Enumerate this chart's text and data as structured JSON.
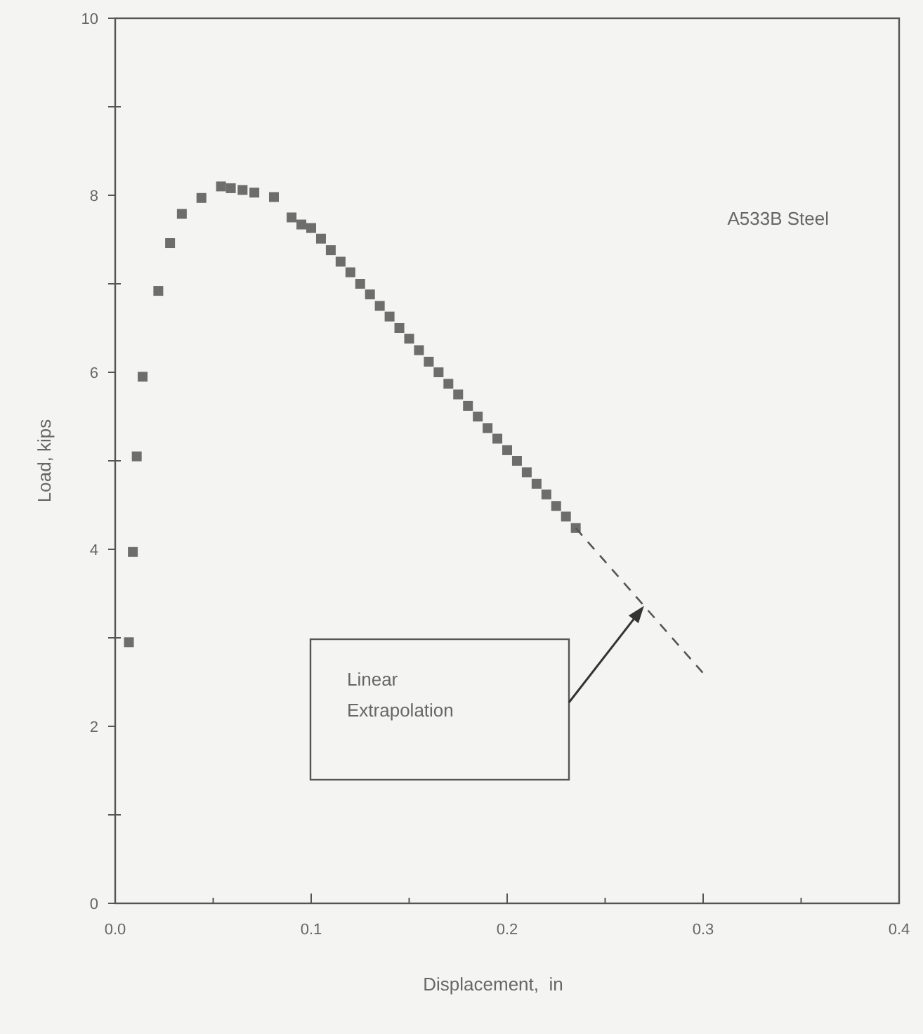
{
  "chart_data": {
    "type": "scatter",
    "xlabel": "Displacement,  in",
    "ylabel": "Load, kips",
    "annotations": [
      "A533B Steel",
      "Linear Extrapolation"
    ],
    "xlim": [
      0,
      0.4
    ],
    "ylim": [
      0,
      10
    ],
    "xticks": [
      {
        "value": 0,
        "label": "0.0"
      },
      {
        "value": 0.05,
        "label": null
      },
      0.1,
      {
        "value": 0.15,
        "label": null
      },
      0.2,
      {
        "value": 0.25,
        "label": null
      },
      0.3,
      {
        "value": 0.35,
        "label": null
      },
      0.4
    ],
    "yticks": [
      0,
      {
        "value": 1,
        "label": null
      },
      2,
      {
        "value": 3,
        "label": null
      },
      4,
      {
        "value": 5,
        "label": null
      },
      6,
      {
        "value": 7,
        "label": null
      },
      8,
      {
        "value": 9,
        "label": null
      },
      10
    ],
    "grid": false,
    "series": [
      {
        "color": "#555555",
        "marker": "square",
        "x": [
          0.007,
          0.009,
          0.011,
          0.014,
          0.022,
          0.028,
          0.034,
          0.044,
          0.054,
          0.059,
          0.065,
          0.071,
          0.081,
          0.09,
          0.095,
          0.1,
          0.105,
          0.11,
          0.115,
          0.12,
          0.125,
          0.13,
          0.135,
          0.14,
          0.145,
          0.15,
          0.155,
          0.16,
          0.165,
          0.17,
          0.175,
          0.18,
          0.185,
          0.19,
          0.195,
          0.2,
          0.205,
          0.21,
          0.215,
          0.22,
          0.225,
          0.23,
          0.235
        ],
        "values": [
          2.95,
          3.97,
          5.05,
          5.95,
          6.92,
          7.46,
          7.79,
          7.97,
          8.1,
          8.08,
          8.06,
          8.03,
          7.98,
          7.75,
          7.67,
          7.63,
          7.51,
          7.38,
          7.25,
          7.13,
          7.0,
          6.88,
          6.75,
          6.63,
          6.5,
          6.38,
          6.25,
          6.12,
          6.0,
          5.87,
          5.75,
          5.62,
          5.5,
          5.37,
          5.25,
          5.12,
          5.0,
          4.87,
          4.74,
          4.62,
          4.49,
          4.37,
          4.24
        ]
      },
      {
        "type": "line",
        "color": "#555555",
        "line_style": "dashed",
        "marker": "none",
        "x": [
          0.235,
          0.302
        ],
        "values": [
          4.24,
          2.55
        ]
      }
    ]
  }
}
